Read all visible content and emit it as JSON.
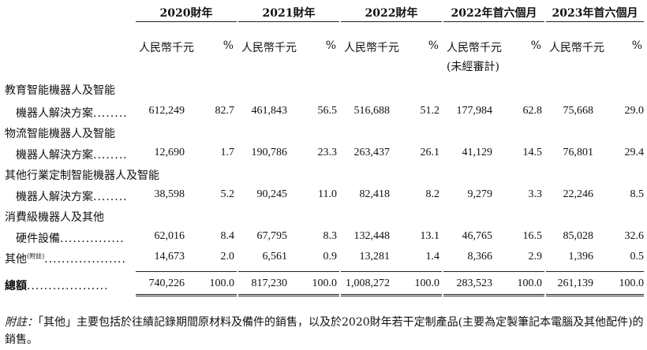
{
  "columns": [
    {
      "year": "2020財年",
      "unit": "人民幣千元",
      "unit2": "",
      "pct": "%"
    },
    {
      "year": "2021財年",
      "unit": "人民幣千元",
      "unit2": "",
      "pct": "%"
    },
    {
      "year": "2022財年",
      "unit": "人民幣千元",
      "unit2": "",
      "pct": "%"
    },
    {
      "year": "2022年首六個月",
      "unit": "人民幣千元",
      "unit2": "(未經審計)",
      "pct": "%"
    },
    {
      "year": "2023年首六個月",
      "unit": "人民幣千元",
      "unit2": "",
      "pct": "%"
    }
  ],
  "rows": [
    {
      "label1": "教育智能機器人及智能",
      "label2": "機器人解決方案",
      "dots": "........",
      "values": [
        "612,249",
        "82.7",
        "461,843",
        "56.5",
        "516,688",
        "51.2",
        "177,984",
        "62.8",
        "75,668",
        "29.0"
      ]
    },
    {
      "label1": "物流智能機器人及智能",
      "label2": "機器人解決方案",
      "dots": "........",
      "values": [
        "12,690",
        "1.7",
        "190,786",
        "23.3",
        "263,437",
        "26.1",
        "41,129",
        "14.5",
        "76,801",
        "29.4"
      ]
    },
    {
      "label1": "其他行業定制智能機器人及智能",
      "label2": "機器人解決方案",
      "dots": "........",
      "values": [
        "38,598",
        "5.2",
        "90,245",
        "11.0",
        "82,418",
        "8.2",
        "9,279",
        "3.3",
        "22,246",
        "8.5"
      ]
    },
    {
      "label1": "消費級機器人及其他",
      "label2": "硬件設備",
      "dots": "...............",
      "values": [
        "62,016",
        "8.4",
        "67,795",
        "8.3",
        "132,448",
        "13.1",
        "46,765",
        "16.5",
        "85,028",
        "32.6"
      ]
    },
    {
      "label1": "",
      "label2": "其他",
      "sup": "(附註)",
      "dots": "...................",
      "values": [
        "14,673",
        "2.0",
        "6,561",
        "0.9",
        "13,281",
        "1.4",
        "8,366",
        "2.9",
        "1,396",
        "0.5"
      ]
    },
    {
      "label1": "",
      "label2": "總額",
      "dots": "...................",
      "values": [
        "740,226",
        "100.0",
        "817,230",
        "100.0",
        "1,008,272",
        "100.0",
        "283,523",
        "100.0",
        "261,139",
        "100.0"
      ]
    }
  ],
  "note": {
    "label": "附註：",
    "text": "「其他」主要包括於往績記錄期間原材料及備件的銷售，以及於2020財年若干定制產品(主要為定製筆記本電腦及其他配件)的銷售。"
  }
}
